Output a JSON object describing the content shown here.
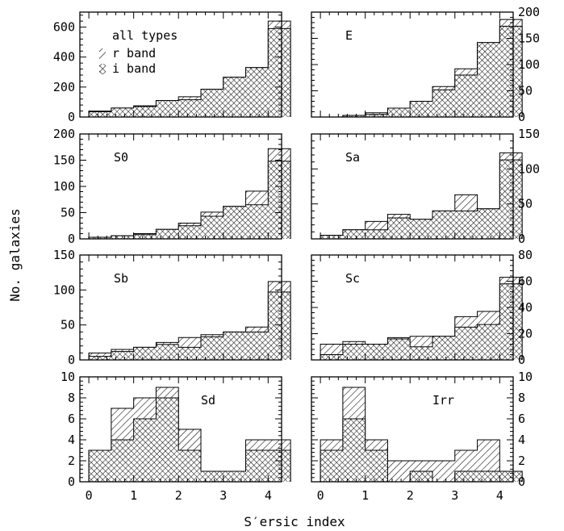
{
  "figure": {
    "xlabel": "S′ersic index",
    "ylabel": "No. galaxies",
    "legend": {
      "r_band": "r band",
      "i_band": "i band"
    }
  },
  "chart_data": [
    {
      "type": "bar",
      "label": "all types",
      "x_bins": [
        0,
        0.5,
        1,
        1.5,
        2,
        2.5,
        3,
        3.5,
        4
      ],
      "ylim": [
        0,
        700
      ],
      "yticks": [
        0,
        200,
        400,
        600
      ],
      "yaxis_side": "left",
      "show_xticklabels": false,
      "series": [
        {
          "name": "r band",
          "values": [
            40,
            60,
            75,
            110,
            135,
            185,
            265,
            330,
            640
          ]
        },
        {
          "name": "i band",
          "values": [
            35,
            60,
            70,
            110,
            115,
            185,
            265,
            330,
            590
          ]
        }
      ]
    },
    {
      "type": "bar",
      "label": "E",
      "x_bins": [
        0,
        0.5,
        1,
        1.5,
        2,
        2.5,
        3,
        3.5,
        4
      ],
      "ylim": [
        0,
        200
      ],
      "yticks": [
        0,
        50,
        100,
        150,
        200
      ],
      "yaxis_side": "right",
      "show_xticklabels": false,
      "series": [
        {
          "name": "r band",
          "values": [
            0,
            3,
            8,
            17,
            30,
            58,
            92,
            142,
            186
          ]
        },
        {
          "name": "i band",
          "values": [
            0,
            3,
            5,
            17,
            30,
            52,
            80,
            142,
            173
          ]
        }
      ]
    },
    {
      "type": "bar",
      "label": "S0",
      "x_bins": [
        0,
        0.5,
        1,
        1.5,
        2,
        2.5,
        3,
        3.5,
        4
      ],
      "ylim": [
        0,
        200
      ],
      "yticks": [
        0,
        50,
        100,
        150,
        200
      ],
      "yaxis_side": "left",
      "show_xticklabels": false,
      "series": [
        {
          "name": "r band",
          "values": [
            3,
            6,
            10,
            18,
            30,
            51,
            62,
            91,
            172
          ]
        },
        {
          "name": "i band",
          "values": [
            3,
            6,
            8,
            18,
            25,
            43,
            62,
            65,
            148
          ]
        }
      ]
    },
    {
      "type": "bar",
      "label": "Sa",
      "x_bins": [
        0,
        0.5,
        1,
        1.5,
        2,
        2.5,
        3,
        3.5,
        4
      ],
      "ylim": [
        0,
        150
      ],
      "yticks": [
        0,
        50,
        100,
        150
      ],
      "yaxis_side": "right",
      "show_xticklabels": false,
      "series": [
        {
          "name": "r band",
          "values": [
            5,
            13,
            25,
            35,
            28,
            40,
            63,
            43,
            123
          ]
        },
        {
          "name": "i band",
          "values": [
            5,
            13,
            13,
            30,
            28,
            40,
            40,
            43,
            113
          ]
        }
      ]
    },
    {
      "type": "bar",
      "label": "Sb",
      "x_bins": [
        0,
        0.5,
        1,
        1.5,
        2,
        2.5,
        3,
        3.5,
        4
      ],
      "ylim": [
        0,
        150
      ],
      "yticks": [
        0,
        50,
        100,
        150
      ],
      "yaxis_side": "left",
      "show_xticklabels": false,
      "series": [
        {
          "name": "r band",
          "values": [
            10,
            15,
            18,
            25,
            32,
            36,
            40,
            47,
            112
          ]
        },
        {
          "name": "i band",
          "values": [
            5,
            12,
            18,
            22,
            18,
            33,
            40,
            40,
            97
          ]
        }
      ]
    },
    {
      "type": "bar",
      "label": "Sc",
      "x_bins": [
        0,
        0.5,
        1,
        1.5,
        2,
        2.5,
        3,
        3.5,
        4
      ],
      "ylim": [
        0,
        80
      ],
      "yticks": [
        0,
        20,
        40,
        60,
        80
      ],
      "yaxis_side": "right",
      "show_xticklabels": false,
      "series": [
        {
          "name": "r band",
          "values": [
            12,
            14,
            12,
            17,
            18,
            18,
            33,
            37,
            63
          ]
        },
        {
          "name": "i band",
          "values": [
            4,
            12,
            12,
            16,
            10,
            18,
            25,
            27,
            58
          ]
        }
      ]
    },
    {
      "type": "bar",
      "label": "Sd",
      "x_bins": [
        0,
        0.5,
        1,
        1.5,
        2,
        2.5,
        3,
        3.5,
        4
      ],
      "ylim": [
        0,
        10
      ],
      "yticks": [
        0,
        2,
        4,
        6,
        8,
        10
      ],
      "yaxis_side": "left",
      "xticks": [
        0,
        1,
        2,
        3,
        4
      ],
      "show_xticklabels": true,
      "series": [
        {
          "name": "r band",
          "values": [
            3,
            7,
            8,
            9,
            5,
            1,
            1,
            4,
            4
          ]
        },
        {
          "name": "i band",
          "values": [
            3,
            4,
            6,
            8,
            3,
            1,
            1,
            3,
            3
          ]
        }
      ]
    },
    {
      "type": "bar",
      "label": "Irr",
      "x_bins": [
        0,
        0.5,
        1,
        1.5,
        2,
        2.5,
        3,
        3.5,
        4
      ],
      "ylim": [
        0,
        10
      ],
      "yticks": [
        0,
        2,
        4,
        6,
        8,
        10
      ],
      "yaxis_side": "right",
      "xticks": [
        0,
        1,
        2,
        3,
        4
      ],
      "show_xticklabels": true,
      "series": [
        {
          "name": "r band",
          "values": [
            4,
            9,
            4,
            2,
            2,
            2,
            3,
            4,
            1
          ]
        },
        {
          "name": "i band",
          "values": [
            3,
            6,
            3,
            0,
            1,
            0,
            1,
            1,
            1
          ]
        }
      ]
    }
  ]
}
